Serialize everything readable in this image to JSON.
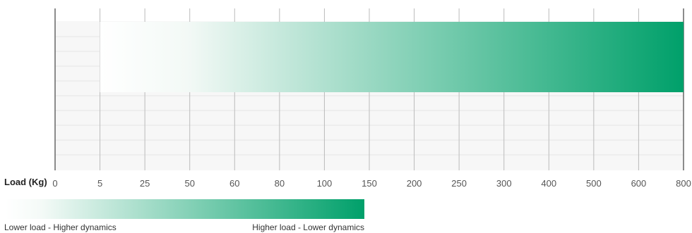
{
  "chart_data": {
    "type": "bar",
    "orientation": "horizontal",
    "xlabel": "Load (Kg)",
    "tick_labels": [
      "0",
      "5",
      "25",
      "50",
      "60",
      "80",
      "100",
      "150",
      "200",
      "250",
      "300",
      "400",
      "500",
      "600",
      "800"
    ],
    "bar": {
      "start": 5,
      "end": 800
    },
    "grid": true,
    "gradient": {
      "from": "#ffffff",
      "to": "#00a06a"
    }
  },
  "legend": {
    "left_label": "Lower load - Higher dynamics",
    "right_label": "Higher load - Lower dynamics"
  }
}
